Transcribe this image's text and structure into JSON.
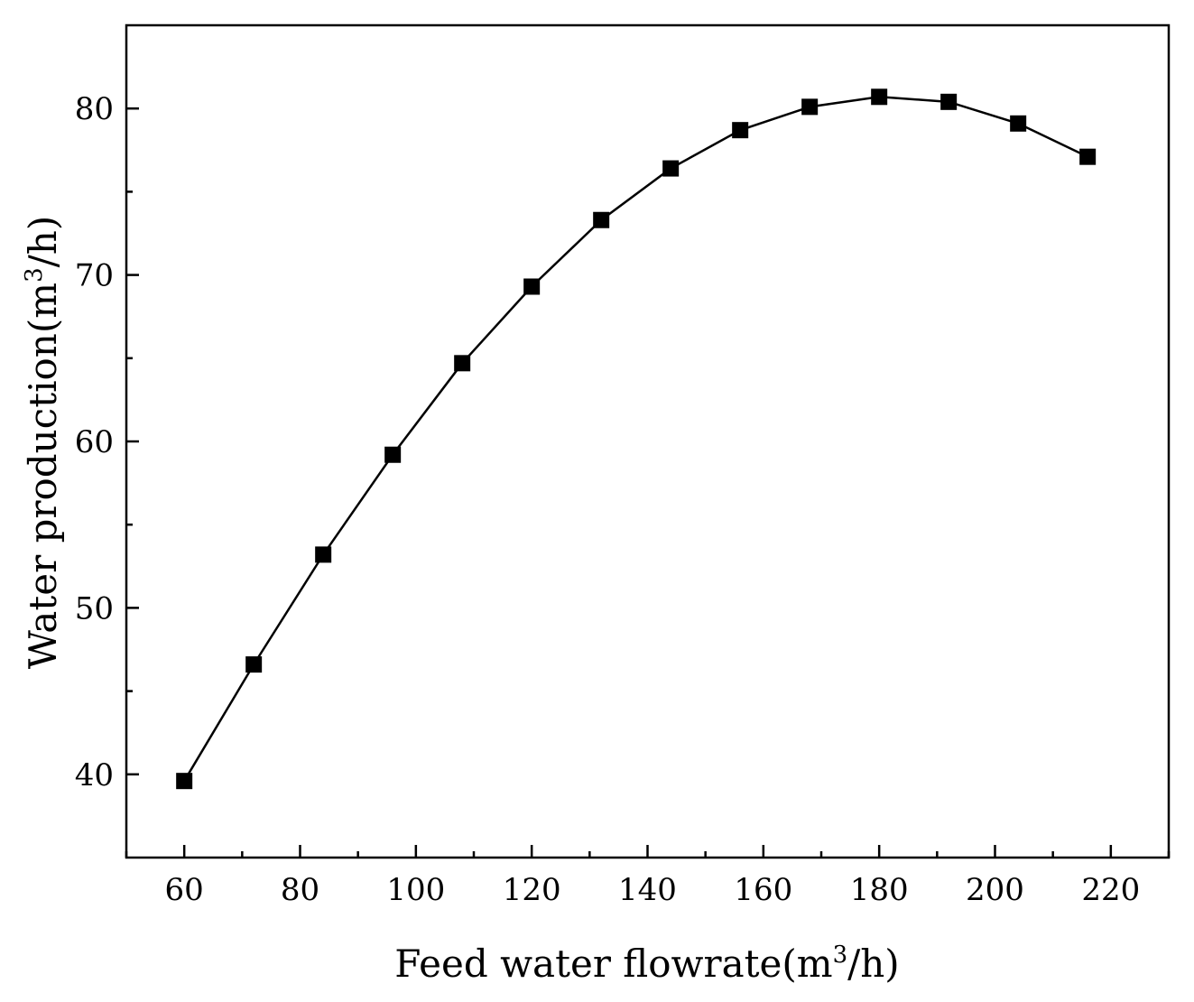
{
  "chart_data": {
    "type": "line",
    "title": "",
    "xlabel": {
      "prefix": "Feed water flowrate(m",
      "sup": "3",
      "suffix": "/h)"
    },
    "ylabel": {
      "prefix": "Water production(m",
      "sup": "3",
      "suffix": "/h)"
    },
    "xlim": [
      50,
      230
    ],
    "ylim": [
      35,
      85
    ],
    "x_ticks": [
      60,
      80,
      100,
      120,
      140,
      160,
      180,
      200,
      220
    ],
    "x_minor_ticks": [
      50,
      70,
      90,
      110,
      130,
      150,
      170,
      190,
      210,
      230
    ],
    "y_ticks": [
      40,
      50,
      60,
      70,
      80
    ],
    "y_minor_ticks": [
      45,
      55,
      65,
      75
    ],
    "grid": false,
    "series": [
      {
        "name": "Water production",
        "marker": "square",
        "color": "#000000",
        "x": [
          60,
          72,
          84,
          96,
          108,
          120,
          132,
          144,
          156,
          168,
          180,
          192,
          204,
          216
        ],
        "y": [
          39.6,
          46.6,
          53.2,
          59.2,
          64.7,
          69.3,
          73.3,
          76.4,
          78.7,
          80.1,
          80.7,
          80.4,
          79.1,
          77.1
        ]
      }
    ]
  }
}
